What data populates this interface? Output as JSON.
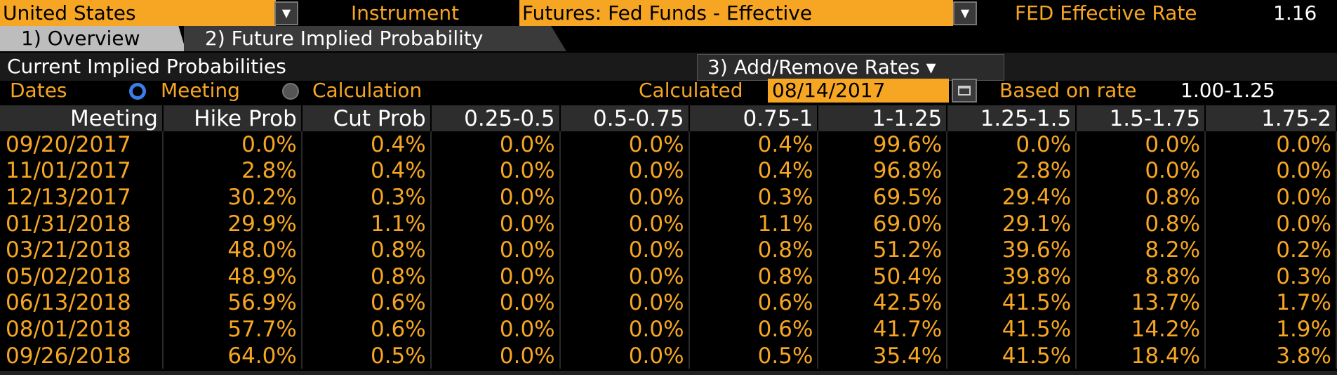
{
  "country": {
    "value": "United States"
  },
  "instrument": {
    "label": "Instrument",
    "value": "Futures: Fed Funds - Effective"
  },
  "fed_rate": {
    "label": "FED Effective Rate",
    "value": "1.16"
  },
  "tabs": [
    {
      "label": "1) Overview"
    },
    {
      "label": "2) Future Implied Probability"
    }
  ],
  "section_title": "Current Implied Probabilities",
  "add_remove": {
    "label": "3) Add/Remove Rates ▾"
  },
  "dates": {
    "label": "Dates",
    "opt_meeting": "Meeting",
    "opt_calculation": "Calculation"
  },
  "calculated": {
    "label": "Calculated",
    "value": "08/14/2017"
  },
  "based_on": {
    "label": "Based on rate",
    "value": "1.00-1.25"
  },
  "table": {
    "headers": [
      "Meeting",
      "Hike Prob",
      "Cut Prob",
      "0.25-0.5",
      "0.5-0.75",
      "0.75-1",
      "1-1.25",
      "1.25-1.5",
      "1.5-1.75",
      "1.75-2"
    ],
    "rows": [
      [
        "09/20/2017",
        "0.0%",
        "0.4%",
        "0.0%",
        "0.0%",
        "0.4%",
        "99.6%",
        "0.0%",
        "0.0%",
        "0.0%"
      ],
      [
        "11/01/2017",
        "2.8%",
        "0.4%",
        "0.0%",
        "0.0%",
        "0.4%",
        "96.8%",
        "2.8%",
        "0.0%",
        "0.0%"
      ],
      [
        "12/13/2017",
        "30.2%",
        "0.3%",
        "0.0%",
        "0.0%",
        "0.3%",
        "69.5%",
        "29.4%",
        "0.8%",
        "0.0%"
      ],
      [
        "01/31/2018",
        "29.9%",
        "1.1%",
        "0.0%",
        "0.0%",
        "1.1%",
        "69.0%",
        "29.1%",
        "0.8%",
        "0.0%"
      ],
      [
        "03/21/2018",
        "48.0%",
        "0.8%",
        "0.0%",
        "0.0%",
        "0.8%",
        "51.2%",
        "39.6%",
        "8.2%",
        "0.2%"
      ],
      [
        "05/02/2018",
        "48.9%",
        "0.8%",
        "0.0%",
        "0.0%",
        "0.8%",
        "50.4%",
        "39.8%",
        "8.8%",
        "0.3%"
      ],
      [
        "06/13/2018",
        "56.9%",
        "0.6%",
        "0.0%",
        "0.0%",
        "0.6%",
        "42.5%",
        "41.5%",
        "13.7%",
        "1.7%"
      ],
      [
        "08/01/2018",
        "57.7%",
        "0.6%",
        "0.0%",
        "0.0%",
        "0.6%",
        "41.7%",
        "41.5%",
        "14.2%",
        "1.9%"
      ],
      [
        "09/26/2018",
        "64.0%",
        "0.5%",
        "0.0%",
        "0.0%",
        "0.5%",
        "35.4%",
        "41.5%",
        "18.4%",
        "3.8%"
      ]
    ]
  },
  "colors": {
    "accent": "#f6a623",
    "radio_on": "#3c7de8"
  }
}
